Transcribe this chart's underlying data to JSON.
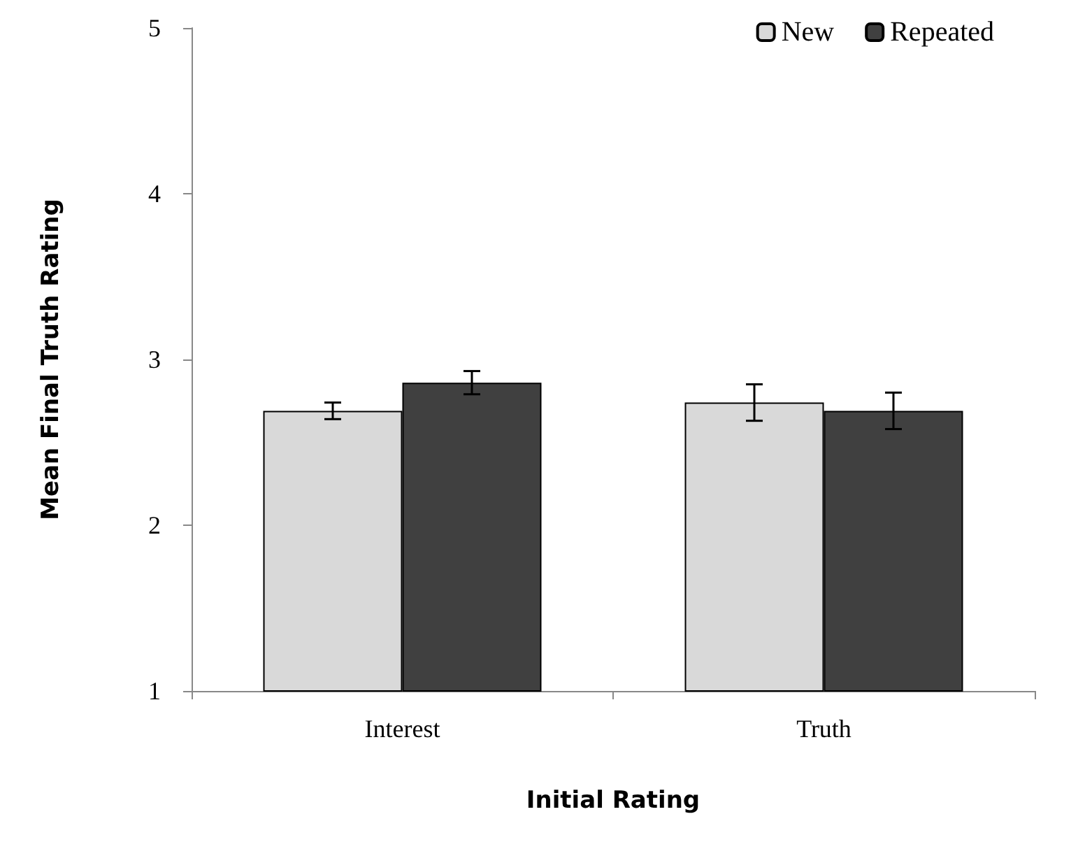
{
  "chart_data": {
    "type": "bar",
    "xlabel": "Initial Rating",
    "ylabel": "Mean Final Truth Rating",
    "categories": [
      "Interest",
      "Truth"
    ],
    "series": [
      {
        "name": "New",
        "color": "#d9d9d9",
        "values": [
          2.69,
          2.74
        ],
        "errors": [
          0.05,
          0.11
        ]
      },
      {
        "name": "Repeated",
        "color": "#404040",
        "values": [
          2.86,
          2.69
        ],
        "errors": [
          0.07,
          0.11
        ]
      }
    ],
    "ylim": [
      1,
      5
    ],
    "yticks": [
      1,
      2,
      3,
      4,
      5
    ],
    "grid": false,
    "legend": "top right"
  }
}
